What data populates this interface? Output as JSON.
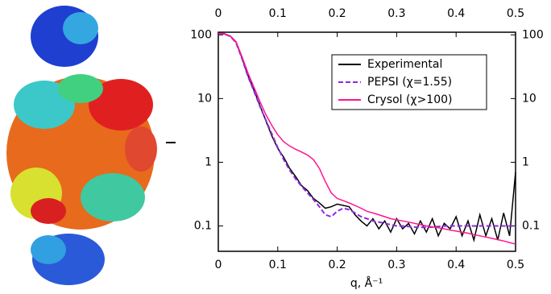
{
  "chart_data": {
    "type": "line",
    "yscale": "log",
    "xlabel": "q, Å⁻¹",
    "x": [
      0,
      0.01,
      0.02,
      0.03,
      0.04,
      0.05,
      0.06,
      0.07,
      0.08,
      0.09,
      0.1,
      0.11,
      0.12,
      0.13,
      0.14,
      0.15,
      0.16,
      0.17,
      0.18,
      0.19,
      0.2,
      0.21,
      0.22,
      0.23,
      0.24,
      0.25,
      0.26,
      0.27,
      0.28,
      0.29,
      0.3,
      0.31,
      0.32,
      0.33,
      0.34,
      0.35,
      0.36,
      0.37,
      0.38,
      0.39,
      0.4,
      0.41,
      0.42,
      0.43,
      0.44,
      0.45,
      0.46,
      0.47,
      0.48,
      0.49,
      0.5
    ],
    "series": [
      {
        "name": "Experimental",
        "color": "#000000",
        "line_style": "solid",
        "values": [
          106,
          104,
          96,
          77,
          43,
          23,
          13.5,
          7.8,
          4.5,
          2.6,
          1.65,
          1.2,
          0.8,
          0.6,
          0.43,
          0.36,
          0.27,
          0.23,
          0.19,
          0.2,
          0.22,
          0.21,
          0.2,
          0.15,
          0.12,
          0.1,
          0.13,
          0.09,
          0.12,
          0.08,
          0.13,
          0.09,
          0.11,
          0.075,
          0.12,
          0.08,
          0.13,
          0.07,
          0.11,
          0.09,
          0.14,
          0.07,
          0.12,
          0.06,
          0.15,
          0.07,
          0.13,
          0.06,
          0.16,
          0.07,
          0.7
        ]
      },
      {
        "name": "PEPSI (χ=1.55)",
        "color": "#8a2be2",
        "line_style": "dashed",
        "values": [
          105,
          103,
          95,
          75,
          42,
          22,
          13,
          7.5,
          4.6,
          2.8,
          1.7,
          1.1,
          0.75,
          0.55,
          0.42,
          0.33,
          0.26,
          0.2,
          0.15,
          0.14,
          0.17,
          0.19,
          0.18,
          0.16,
          0.14,
          0.13,
          0.12,
          0.115,
          0.11,
          0.105,
          0.1,
          0.1,
          0.098,
          0.096,
          0.095,
          0.095,
          0.096,
          0.098,
          0.1,
          0.1,
          0.1,
          0.1,
          0.1,
          0.1,
          0.1,
          0.1,
          0.1,
          0.1,
          0.1,
          0.1,
          0.1
        ]
      },
      {
        "name": "Crysol (χ>100)",
        "color": "#ff1493",
        "line_style": "solid",
        "values": [
          105,
          103,
          96,
          78,
          45,
          25,
          15,
          9,
          5.6,
          3.8,
          2.7,
          2.1,
          1.8,
          1.6,
          1.45,
          1.3,
          1.1,
          0.8,
          0.5,
          0.33,
          0.27,
          0.25,
          0.23,
          0.21,
          0.19,
          0.17,
          0.16,
          0.15,
          0.14,
          0.13,
          0.125,
          0.12,
          0.115,
          0.11,
          0.105,
          0.1,
          0.097,
          0.094,
          0.09,
          0.086,
          0.083,
          0.08,
          0.077,
          0.073,
          0.07,
          0.067,
          0.064,
          0.061,
          0.058,
          0.055,
          0.052
        ]
      }
    ],
    "xlim": [
      0,
      0.5
    ],
    "xticks": [
      0,
      0.1,
      0.2,
      0.3,
      0.4,
      0.5
    ],
    "ylim": [
      0.04,
      110
    ],
    "yticks": [
      0.1,
      1,
      10,
      100
    ]
  }
}
